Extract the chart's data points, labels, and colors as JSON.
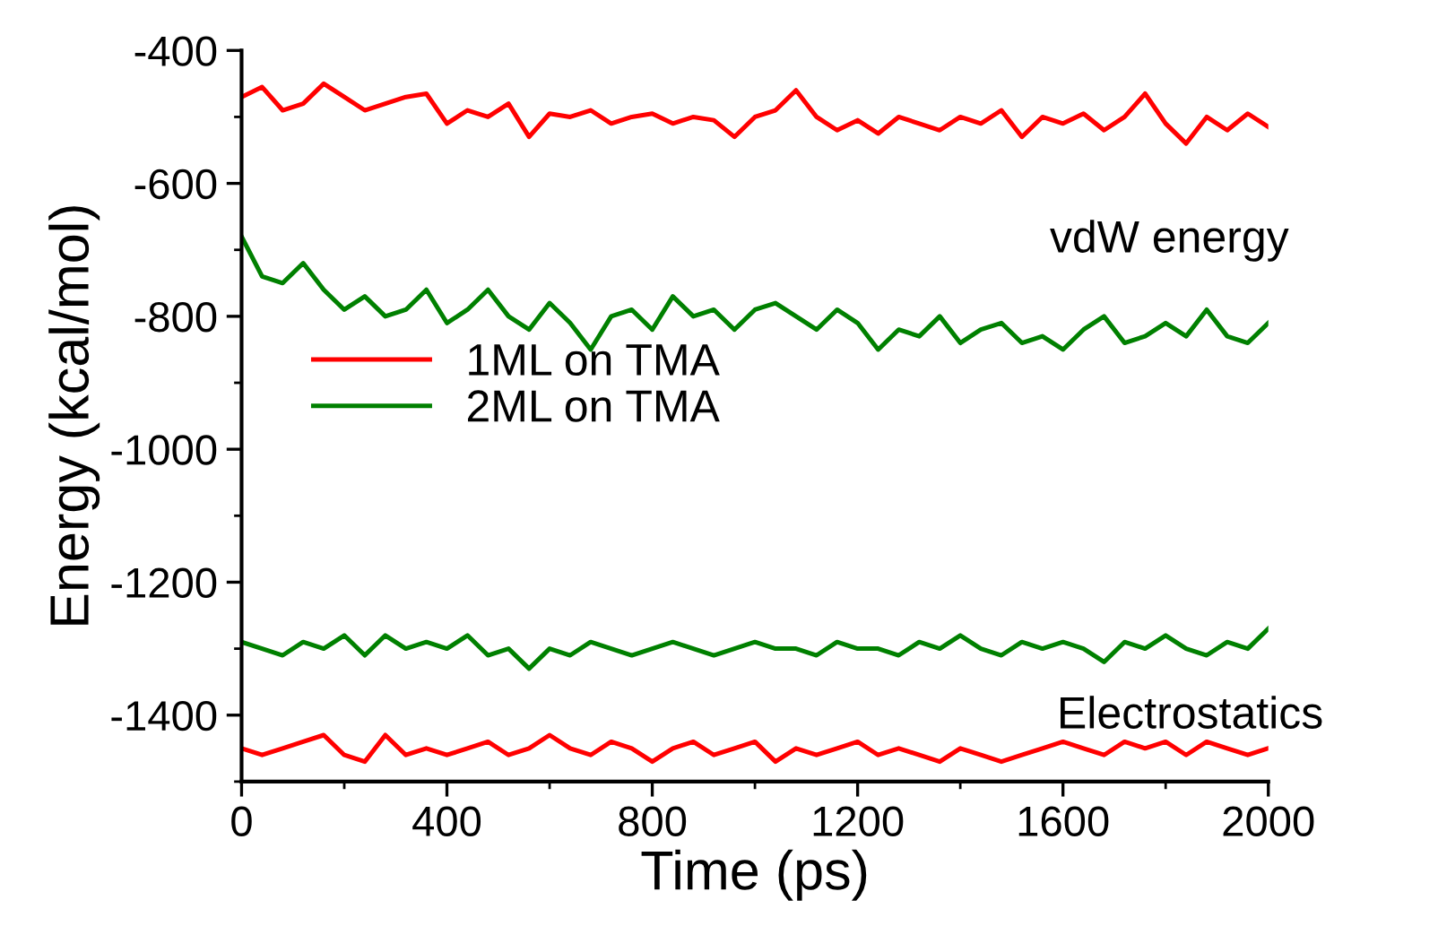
{
  "chart_data": {
    "type": "line",
    "xlabel": "Time (ps)",
    "ylabel": "Energy (kcal/mol)",
    "x": [
      0,
      40,
      80,
      120,
      160,
      200,
      240,
      280,
      320,
      360,
      400,
      440,
      480,
      520,
      560,
      600,
      640,
      680,
      720,
      760,
      800,
      840,
      880,
      920,
      960,
      1000,
      1040,
      1080,
      1120,
      1160,
      1200,
      1240,
      1280,
      1320,
      1360,
      1400,
      1440,
      1480,
      1520,
      1560,
      1600,
      1640,
      1680,
      1720,
      1760,
      1800,
      1840,
      1880,
      1920,
      1960,
      2000
    ],
    "xlim": [
      0,
      2000
    ],
    "xticks": [
      0,
      400,
      800,
      1200,
      1600,
      2000
    ],
    "ylim": [
      -1500,
      -400
    ],
    "yticks": [
      -1400,
      -1200,
      -1000,
      -800,
      -600,
      -400
    ],
    "series": [
      {
        "name": "1ML on TMA",
        "color": "#ff0000",
        "values": [
          -470,
          -455,
          -490,
          -480,
          -450,
          -470,
          -490,
          -480,
          -470,
          -465,
          -510,
          -490,
          -500,
          -480,
          -530,
          -495,
          -500,
          -490,
          -510,
          -500,
          -495,
          -510,
          -500,
          -505,
          -530,
          -500,
          -490,
          -460,
          -500,
          -520,
          -505,
          -525,
          -500,
          -510,
          -520,
          -500,
          -510,
          -490,
          -530,
          -500,
          -510,
          -495,
          -520,
          -500,
          -465,
          -510,
          -540,
          -500,
          -520,
          -495,
          -515
        ]
      },
      {
        "name": "2ML on TMA",
        "color": "#008000",
        "values": [
          -680,
          -740,
          -750,
          -720,
          -760,
          -790,
          -770,
          -800,
          -790,
          -760,
          -810,
          -790,
          -760,
          -800,
          -820,
          -780,
          -810,
          -850,
          -800,
          -790,
          -820,
          -770,
          -800,
          -790,
          -820,
          -790,
          -780,
          -800,
          -820,
          -790,
          -810,
          -850,
          -820,
          -830,
          -800,
          -840,
          -820,
          -810,
          -840,
          -830,
          -850,
          -820,
          -800,
          -840,
          -830,
          -810,
          -830,
          -790,
          -830,
          -840,
          -810
        ]
      },
      {
        "color": "#008000",
        "values": [
          -1290,
          -1300,
          -1310,
          -1290,
          -1300,
          -1280,
          -1310,
          -1280,
          -1300,
          -1290,
          -1300,
          -1280,
          -1310,
          -1300,
          -1330,
          -1300,
          -1310,
          -1290,
          -1300,
          -1310,
          -1300,
          -1290,
          -1300,
          -1310,
          -1300,
          -1290,
          -1300,
          -1300,
          -1310,
          -1290,
          -1300,
          -1300,
          -1310,
          -1290,
          -1300,
          -1280,
          -1300,
          -1310,
          -1290,
          -1300,
          -1290,
          -1300,
          -1320,
          -1290,
          -1300,
          -1280,
          -1300,
          -1310,
          -1290,
          -1300,
          -1270
        ]
      },
      {
        "color": "#ff0000",
        "values": [
          -1450,
          -1460,
          -1450,
          -1440,
          -1430,
          -1460,
          -1470,
          -1430,
          -1460,
          -1450,
          -1460,
          -1450,
          -1440,
          -1460,
          -1450,
          -1430,
          -1450,
          -1460,
          -1440,
          -1450,
          -1470,
          -1450,
          -1440,
          -1460,
          -1450,
          -1440,
          -1470,
          -1450,
          -1460,
          -1450,
          -1440,
          -1460,
          -1450,
          -1460,
          -1470,
          -1450,
          -1460,
          -1470,
          -1460,
          -1450,
          -1440,
          -1450,
          -1460,
          -1440,
          -1450,
          -1440,
          -1460,
          -1440,
          -1450,
          -1460,
          -1450
        ]
      }
    ],
    "annotations": [
      "vdW energy",
      "Electrostatics"
    ],
    "legend": "left",
    "grid": false,
    "marker": "none",
    "line_style": "solid"
  }
}
